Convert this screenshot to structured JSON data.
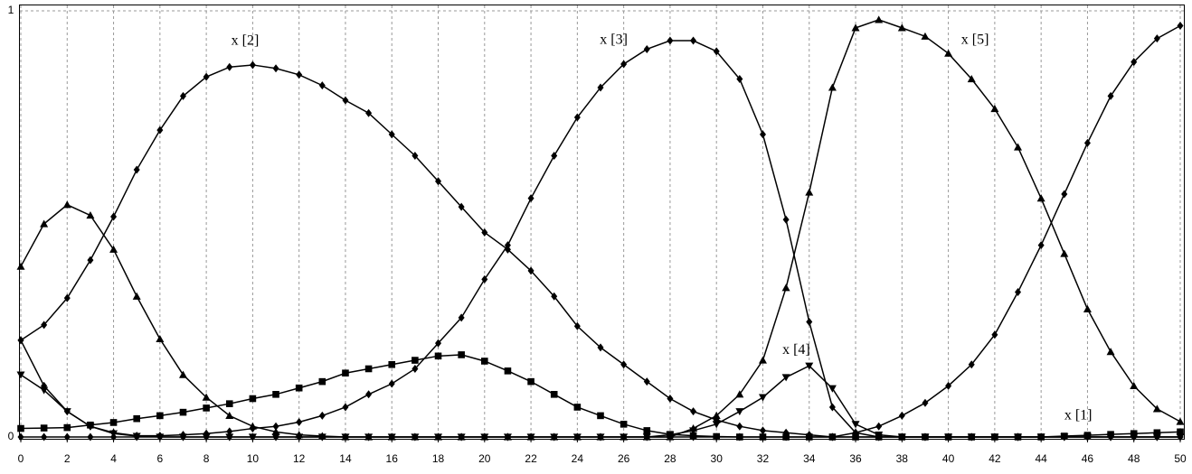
{
  "chart_data": {
    "type": "line",
    "x": [
      0,
      1,
      2,
      3,
      4,
      5,
      6,
      7,
      8,
      9,
      10,
      11,
      12,
      13,
      14,
      15,
      16,
      17,
      18,
      19,
      20,
      21,
      22,
      23,
      24,
      25,
      26,
      27,
      28,
      29,
      30,
      31,
      32,
      33,
      34,
      35,
      36,
      37,
      38,
      39,
      40,
      41,
      42,
      43,
      44,
      45,
      46,
      47,
      48,
      49,
      50
    ],
    "xlim": [
      0,
      50
    ],
    "ylim": [
      0,
      1
    ],
    "xticks": [
      0,
      2,
      4,
      6,
      8,
      10,
      12,
      14,
      16,
      18,
      20,
      22,
      24,
      26,
      28,
      30,
      32,
      34,
      36,
      38,
      40,
      42,
      44,
      46,
      48,
      50
    ],
    "yticks": [
      0,
      1
    ],
    "grid": "x",
    "series": [
      {
        "marker": "triangle-up",
        "color": "#000000",
        "values": [
          0.4,
          0.5,
          0.545,
          0.52,
          0.44,
          0.33,
          0.23,
          0.146,
          0.093,
          0.05,
          0.025,
          0.012,
          0.005,
          0.002,
          0,
          0,
          0,
          0,
          0,
          0,
          0,
          0,
          0,
          0,
          0,
          0,
          0,
          0,
          0,
          0.02,
          0.05,
          0.1,
          0.18,
          0.35,
          0.574,
          0.82,
          0.96,
          0.979,
          0.96,
          0.94,
          0.9,
          0.84,
          0.77,
          0.68,
          0.56,
          0.43,
          0.3,
          0.2,
          0.12,
          0.066,
          0.036
        ]
      },
      {
        "marker": "diamond",
        "color": "#000000",
        "values": [
          0.227,
          0.263,
          0.326,
          0.415,
          0.517,
          0.627,
          0.72,
          0.8,
          0.845,
          0.868,
          0.873,
          0.865,
          0.85,
          0.825,
          0.79,
          0.76,
          0.71,
          0.66,
          0.6,
          0.54,
          0.48,
          0.44,
          0.39,
          0.33,
          0.26,
          0.21,
          0.17,
          0.13,
          0.09,
          0.06,
          0.04,
          0.025,
          0.015,
          0.01,
          0.005,
          0,
          0,
          0,
          0,
          0,
          0,
          0,
          0,
          0,
          0,
          0,
          0,
          0,
          0,
          0,
          0
        ]
      },
      {
        "marker": "diamond",
        "color": "#000000",
        "values": [
          0.227,
          0.12,
          0.06,
          0.025,
          0.01,
          0.003,
          0.003,
          0.005,
          0.008,
          0.013,
          0.02,
          0.025,
          0.035,
          0.05,
          0.07,
          0.1,
          0.125,
          0.16,
          0.22,
          0.28,
          0.37,
          0.45,
          0.56,
          0.66,
          0.75,
          0.82,
          0.875,
          0.91,
          0.93,
          0.93,
          0.905,
          0.84,
          0.71,
          0.51,
          0.27,
          0.07,
          0.01,
          0,
          0,
          0,
          0,
          0,
          0,
          0,
          0,
          0,
          0,
          0,
          0,
          0,
          0
        ]
      },
      {
        "marker": "diamond",
        "color": "#000000",
        "values": [
          0,
          0,
          0,
          0,
          0,
          0,
          0,
          0,
          0,
          0,
          0,
          0,
          0,
          0,
          0,
          0,
          0,
          0,
          0,
          0,
          0,
          0,
          0,
          0,
          0,
          0,
          0,
          0,
          0,
          0,
          0,
          0,
          0,
          0,
          0,
          0,
          0.01,
          0.025,
          0.05,
          0.08,
          0.12,
          0.17,
          0.24,
          0.34,
          0.45,
          0.57,
          0.69,
          0.8,
          0.88,
          0.935,
          0.965
        ]
      },
      {
        "marker": "square",
        "color": "#000000",
        "values": [
          0.02,
          0.021,
          0.022,
          0.028,
          0.034,
          0.043,
          0.05,
          0.058,
          0.068,
          0.078,
          0.09,
          0.1,
          0.115,
          0.13,
          0.15,
          0.16,
          0.17,
          0.18,
          0.19,
          0.193,
          0.178,
          0.155,
          0.13,
          0.1,
          0.07,
          0.05,
          0.03,
          0.015,
          0.006,
          0.003,
          0.001,
          0,
          0,
          0,
          0,
          0,
          0,
          0,
          0,
          0,
          0,
          0,
          0,
          0,
          0,
          0.002,
          0.004,
          0.006,
          0.008,
          0.01,
          0.012
        ]
      },
      {
        "marker": "triangle-down",
        "color": "#000000",
        "values": [
          0.146,
          0.11,
          0.06,
          0.025,
          0.008,
          0.002,
          0,
          0,
          0,
          0,
          0,
          0,
          0,
          0,
          0,
          0,
          0,
          0,
          0,
          0,
          0,
          0,
          0,
          0,
          0,
          0,
          0,
          0,
          0.005,
          0.015,
          0.03,
          0.06,
          0.093,
          0.14,
          0.167,
          0.114,
          0.03,
          0.005,
          0,
          0,
          0,
          0,
          0,
          0,
          0,
          0,
          0,
          0,
          0,
          0,
          0
        ]
      }
    ],
    "annotations": [
      {
        "text": "x [2]",
        "x": 9.67,
        "y": 0.928
      },
      {
        "text": "x [3]",
        "x": 25.57,
        "y": 0.93
      },
      {
        "text": "x [5]",
        "x": 41.15,
        "y": 0.93
      },
      {
        "text": "x [4]",
        "x": 33.44,
        "y": 0.203
      },
      {
        "text": "x [1]",
        "x": 45.6,
        "y": 0.049
      }
    ]
  }
}
